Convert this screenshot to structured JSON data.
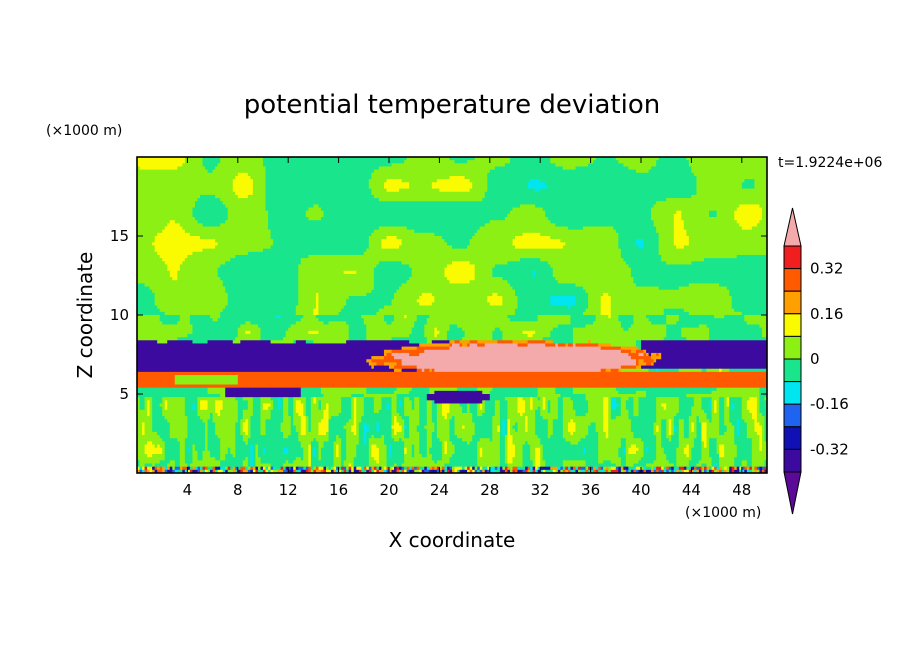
{
  "chart_data": {
    "type": "heatmap",
    "title": "potential temperature deviation",
    "xlabel": "X coordinate",
    "ylabel": "Z coordinate",
    "x_unit": "(×1000 m)",
    "y_unit": "(×1000 m)",
    "time_label": "t=1.9224e+06",
    "xlim": [
      0,
      50
    ],
    "ylim": [
      0,
      20
    ],
    "x_ticks": [
      4,
      8,
      12,
      16,
      20,
      24,
      28,
      32,
      36,
      40,
      44,
      48
    ],
    "y_ticks": [
      5,
      10,
      15
    ],
    "colorbar": {
      "levels": [
        -0.4,
        -0.32,
        -0.24,
        -0.16,
        -0.08,
        0,
        0.08,
        0.16,
        0.24,
        0.32,
        0.4
      ],
      "colors": [
        "#5a0a96",
        "#3d0aa0",
        "#1010b4",
        "#1e64f0",
        "#00e6f0",
        "#19e68c",
        "#8cf014",
        "#fafa00",
        "#ffa000",
        "#ff5a00",
        "#f01e1e",
        "#f4aaaa"
      ],
      "tick_labels": [
        "0.32",
        "0.16",
        "0",
        "-0.16",
        "-0.32"
      ],
      "tick_values": [
        0.32,
        0.16,
        0,
        -0.16,
        -0.32
      ]
    },
    "structure": {
      "background": "near-zero noisy field alternating 0 to 0.08 and -0.08 to 0",
      "warm_anomaly": {
        "x": [
          17,
          43
        ],
        "z": [
          6,
          8.5
        ],
        "value_range": [
          0.24,
          0.4
        ]
      },
      "cold_layer_left": {
        "x": [
          0,
          26
        ],
        "z": [
          5,
          8.5
        ],
        "value_range": [
          -0.4,
          -0.32
        ]
      },
      "cold_layer_right": {
        "x": [
          40,
          50
        ],
        "z": [
          6.5,
          8.5
        ],
        "value_range": [
          -0.4,
          -0.32
        ]
      },
      "warm_band": {
        "x": [
          0,
          50
        ],
        "z": [
          5.5,
          6.4
        ],
        "value_range": [
          0.24,
          0.32
        ]
      },
      "cold_blob": {
        "x": [
          23,
          28
        ],
        "z": [
          4.3,
          5.2
        ],
        "value_range": [
          -0.4,
          -0.32
        ]
      }
    }
  }
}
